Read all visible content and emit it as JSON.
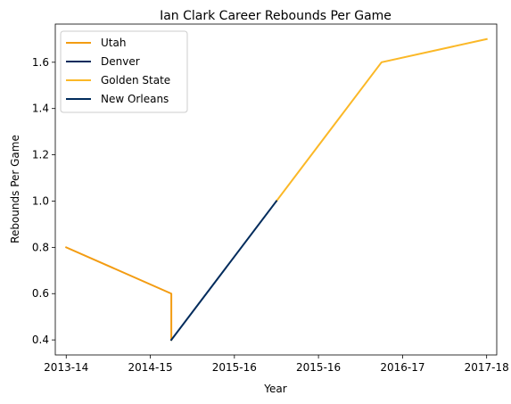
{
  "chart_data": {
    "type": "line",
    "title": "Ian Clark  Career Rebounds Per Game",
    "xlabel": "Year",
    "ylabel": "Rebounds Per Game",
    "x_categories": [
      "2013-14",
      "2014-15",
      "2015-16",
      "2015-16",
      "2016-17",
      "2017-18"
    ],
    "xlim": [
      -0.13,
      5.12
    ],
    "ylim": [
      0.335,
      1.765
    ],
    "yticks": [
      0.4,
      0.6,
      0.8,
      1.0,
      1.2,
      1.4,
      1.6
    ],
    "ytick_labels": [
      "0.4",
      "0.6",
      "0.8",
      "1.0",
      "1.2",
      "1.4",
      "1.6"
    ],
    "grid": false,
    "legend_position": "top-left",
    "series": [
      {
        "name": "Utah",
        "color": "#f39c12",
        "points": [
          [
            0,
            0.8
          ],
          [
            1.25,
            0.6
          ],
          [
            1.25,
            0.4
          ]
        ]
      },
      {
        "name": "Denver",
        "color": "#002b5c",
        "points": [
          [
            1.25,
            0.4
          ]
        ]
      },
      {
        "name": "Golden State",
        "color": "#fbb827",
        "points": [
          [
            2.5,
            1.0
          ],
          [
            3.75,
            1.6
          ],
          [
            5,
            1.7
          ]
        ]
      },
      {
        "name": "New Orleans",
        "color": "#002b5c",
        "points": [
          [
            1.25,
            0.4
          ],
          [
            2.5,
            1.0
          ]
        ]
      }
    ]
  }
}
